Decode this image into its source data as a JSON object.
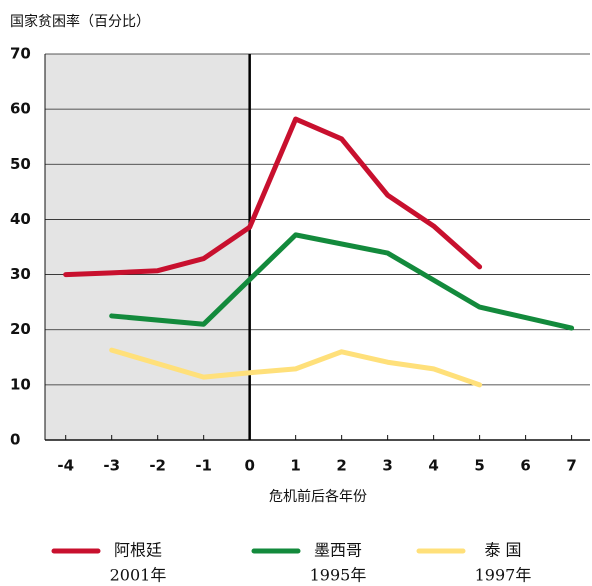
{
  "chart_data": {
    "type": "line",
    "title": "国家贫困率（百分比）",
    "xlabel": "危机前后各年份",
    "xlim": [
      -4.45,
      7.4
    ],
    "ylim": [
      0,
      70
    ],
    "xticks": [
      -4,
      -3,
      -2,
      -1,
      0,
      1,
      2,
      3,
      4,
      5,
      6,
      7
    ],
    "yticks": [
      0,
      10,
      20,
      30,
      40,
      50,
      60,
      70
    ],
    "series": [
      {
        "name": "阿根廷",
        "year": "2001年",
        "color": "#c8102e",
        "x": [
          -4,
          -3,
          -2,
          -1,
          0,
          1,
          2,
          3,
          4,
          5
        ],
        "values": [
          30,
          30.3,
          30.7,
          32.9,
          38.6,
          58.2,
          54.6,
          44.4,
          38.8,
          31.4
        ]
      },
      {
        "name": "墨西哥",
        "year": "1995年",
        "color": "#138a3c",
        "x": [
          -3,
          -1,
          1,
          3,
          5,
          7
        ],
        "values": [
          22.5,
          21.0,
          37.2,
          33.9,
          24.1,
          20.3
        ]
      },
      {
        "name": "泰 国",
        "year": "1997年",
        "color": "#ffe07a",
        "x": [
          -3,
          -1,
          0,
          1,
          2,
          3,
          4,
          5
        ],
        "values": [
          16.3,
          11.4,
          12.2,
          12.9,
          16.0,
          14.1,
          12.9,
          10.0
        ]
      }
    ]
  }
}
